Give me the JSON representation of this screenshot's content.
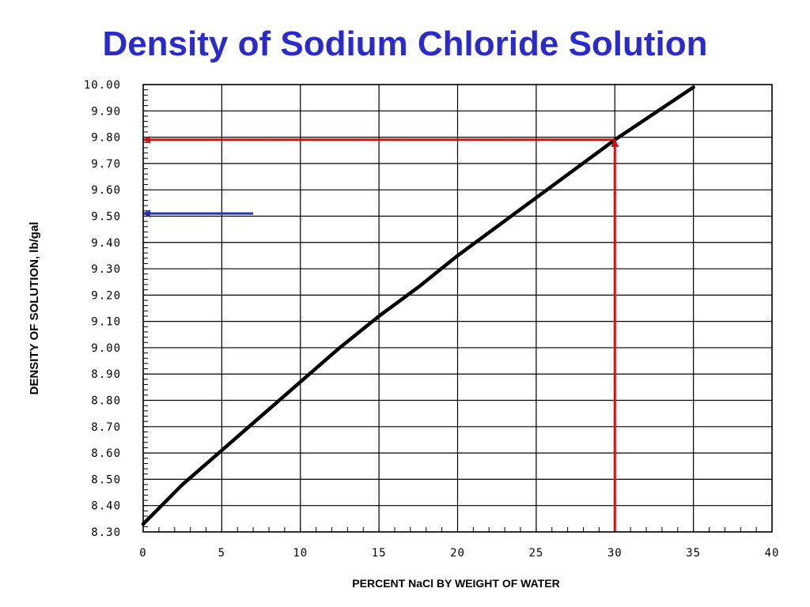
{
  "slide": {
    "title": "Density of Sodium Chloride Solution"
  },
  "chart_data": {
    "type": "line",
    "title": "",
    "xlabel": "PERCENT NaCl BY WEIGHT OF WATER",
    "ylabel": "DENSITY OF SOLUTION, lb/gal",
    "xlim": [
      0,
      40
    ],
    "ylim": [
      8.3,
      10.0
    ],
    "x_ticks": [
      0,
      5,
      10,
      15,
      20,
      25,
      30,
      35,
      40
    ],
    "x_tick_labels": [
      "0",
      "5",
      "10",
      "15",
      "20",
      "25",
      "30",
      "35",
      "40"
    ],
    "y_ticks": [
      8.3,
      8.4,
      8.5,
      8.6,
      8.7,
      8.8,
      8.9,
      9.0,
      9.1,
      9.2,
      9.3,
      9.4,
      9.5,
      9.6,
      9.7,
      9.8,
      9.9,
      10.0
    ],
    "y_tick_labels": [
      "8.30",
      "8.40",
      "8.50",
      "8.60",
      "8.70",
      "8.80",
      "8.90",
      "9.00",
      "9.10",
      "9.20",
      "9.30",
      "9.40",
      "9.50",
      "9.60",
      "9.70",
      "9.80",
      "9.90",
      "10.00"
    ],
    "grid": true,
    "series": [
      {
        "x": [
          0,
          2.5,
          5,
          7.5,
          10,
          12.5,
          15,
          17.5,
          20,
          22.5,
          25,
          27.5,
          30,
          32.5,
          35
        ],
        "y": [
          8.33,
          8.48,
          8.61,
          8.74,
          8.87,
          9.0,
          9.12,
          9.23,
          9.35,
          9.46,
          9.57,
          9.68,
          9.79,
          9.89,
          9.99
        ],
        "color": "#000000"
      }
    ],
    "annotations": [
      {
        "kind": "arrow-up",
        "color": "#cc1111",
        "from": [
          30,
          8.3
        ],
        "to": [
          30,
          9.79
        ]
      },
      {
        "kind": "arrow-left",
        "color": "#cc1111",
        "from": [
          30,
          9.79
        ],
        "to": [
          0,
          9.79
        ]
      },
      {
        "kind": "arrow-left",
        "color": "#2233bb",
        "from": [
          7,
          9.51
        ],
        "to": [
          0,
          9.51
        ]
      }
    ]
  }
}
